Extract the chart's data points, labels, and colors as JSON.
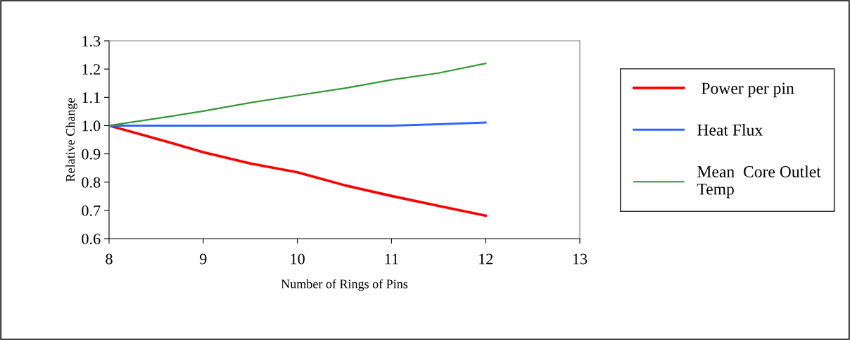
{
  "chart_data": {
    "type": "line",
    "xlabel": "Number of Rings of Pins",
    "ylabel": "Relative Change",
    "x": [
      8,
      8.5,
      9,
      9.5,
      10,
      10.5,
      11,
      11.5,
      12
    ],
    "series": [
      {
        "name": " Power per pin",
        "color": "#ff0000",
        "values": [
          1.0,
          0.954,
          0.906,
          0.866,
          0.835,
          0.789,
          0.751,
          0.716,
          0.681
        ]
      },
      {
        "name": "Heat Flux",
        "color": "#3366ff",
        "values": [
          1.0,
          1.0,
          1.0,
          1.0,
          1.0,
          1.0,
          1.0,
          1.005,
          1.011
        ]
      },
      {
        "name": "Mean  Core Outlet\nTemp",
        "color": "#339933",
        "values": [
          1.0,
          1.025,
          1.051,
          1.081,
          1.107,
          1.132,
          1.162,
          1.186,
          1.22
        ]
      }
    ],
    "xlim": [
      8,
      13
    ],
    "xticks": [
      8,
      9,
      10,
      11,
      12,
      13
    ],
    "ylim": [
      0.6,
      1.3
    ],
    "yticks": [
      {
        "value": 0.6,
        "label": "0.6"
      },
      {
        "value": 0.7,
        "label": "0.7"
      },
      {
        "value": 0.8,
        "label": "0.8"
      },
      {
        "value": 0.9,
        "label": "0.9"
      },
      {
        "value": 1.0,
        "label": "1.0"
      },
      {
        "value": 1.1,
        "label": "1.1"
      },
      {
        "value": 1.2,
        "label": "1.2"
      },
      {
        "value": 1.3,
        "label": "1.3"
      }
    ],
    "grid": false,
    "legend": "right",
    "marker": "none",
    "line_style": "solid"
  }
}
